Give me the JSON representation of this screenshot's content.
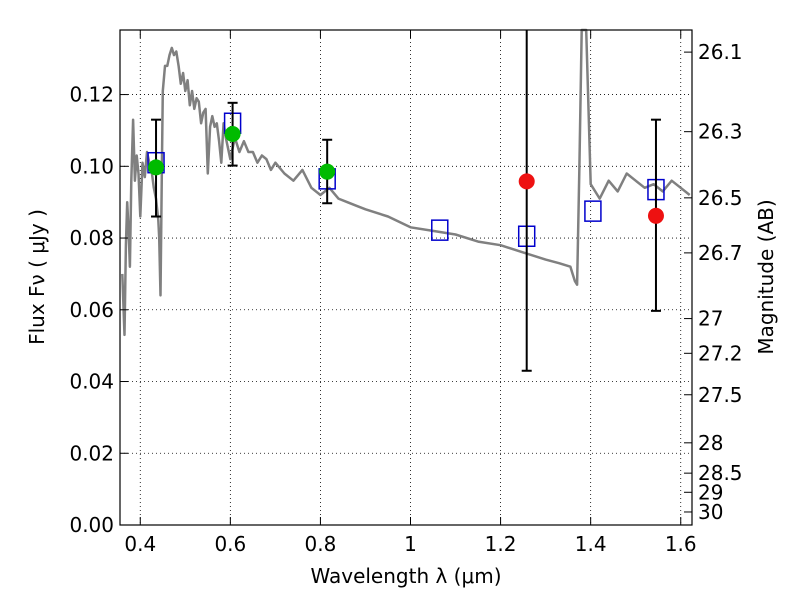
{
  "chart_data": {
    "type": "scatter",
    "xlabel": "Wavelength  λ (μm)",
    "ylabel": "Flux  Fν  ( μJy )",
    "ylabel_right": "Magnitude (AB)",
    "xlim": [
      0.355,
      1.625
    ],
    "ylim": [
      0.0,
      0.138
    ],
    "x_ticks": [
      0.4,
      0.6,
      0.8,
      1.0,
      1.2,
      1.4,
      1.6
    ],
    "x_tick_labels": [
      "0.4",
      "0.6",
      "0.8",
      "1",
      "1.2",
      "1.4",
      "1.6"
    ],
    "y_ticks": [
      0.0,
      0.02,
      0.04,
      0.06,
      0.08,
      0.1,
      0.12
    ],
    "y_tick_labels": [
      "0.00",
      "0.02",
      "0.04",
      "0.06",
      "0.08",
      "0.10",
      "0.12"
    ],
    "right_ticks": [
      26.1,
      26.3,
      26.5,
      26.7,
      27,
      27.2,
      27.5,
      28,
      28.5,
      29,
      30
    ],
    "right_tick_labels": [
      "26.1",
      "26.3",
      "26.5",
      "26.7",
      "27",
      "27.2",
      "27.5",
      "28",
      "28.5",
      "29",
      "30"
    ],
    "grid": true,
    "colors": {
      "model_line": "#808080",
      "detection": "#00bb00",
      "nondetection": "#ee1111",
      "model_box": "#0000cc",
      "errorbar": "#000000"
    },
    "model_spectrum": {
      "x": [
        0.36,
        0.365,
        0.368,
        0.371,
        0.374,
        0.377,
        0.38,
        0.384,
        0.388,
        0.392,
        0.396,
        0.4,
        0.405,
        0.41,
        0.415,
        0.42,
        0.425,
        0.43,
        0.435,
        0.44,
        0.442,
        0.445,
        0.448,
        0.45,
        0.455,
        0.46,
        0.465,
        0.47,
        0.475,
        0.48,
        0.485,
        0.49,
        0.495,
        0.5,
        0.505,
        0.51,
        0.515,
        0.52,
        0.525,
        0.53,
        0.535,
        0.54,
        0.545,
        0.55,
        0.555,
        0.56,
        0.565,
        0.57,
        0.575,
        0.58,
        0.585,
        0.59,
        0.6,
        0.61,
        0.62,
        0.63,
        0.64,
        0.65,
        0.66,
        0.67,
        0.68,
        0.69,
        0.7,
        0.72,
        0.74,
        0.76,
        0.78,
        0.8,
        0.82,
        0.84,
        0.86,
        0.88,
        0.9,
        0.95,
        1.0,
        1.05,
        1.1,
        1.15,
        1.2,
        1.25,
        1.3,
        1.33,
        1.355,
        1.36,
        1.365,
        1.37,
        1.375,
        1.38,
        1.39,
        1.4,
        1.42,
        1.44,
        1.46,
        1.48,
        1.5,
        1.52,
        1.54,
        1.56,
        1.58,
        1.6,
        1.62
      ],
      "y": [
        0.07,
        0.053,
        0.078,
        0.09,
        0.082,
        0.072,
        0.096,
        0.113,
        0.096,
        0.103,
        0.098,
        0.086,
        0.101,
        0.097,
        0.104,
        0.101,
        0.099,
        0.094,
        0.091,
        0.085,
        0.08,
        0.064,
        0.1,
        0.121,
        0.128,
        0.128,
        0.131,
        0.133,
        0.131,
        0.132,
        0.128,
        0.123,
        0.126,
        0.121,
        0.124,
        0.117,
        0.121,
        0.116,
        0.119,
        0.118,
        0.112,
        0.115,
        0.116,
        0.098,
        0.111,
        0.114,
        0.111,
        0.112,
        0.107,
        0.101,
        0.112,
        0.108,
        0.102,
        0.108,
        0.104,
        0.107,
        0.104,
        0.104,
        0.101,
        0.103,
        0.102,
        0.099,
        0.101,
        0.098,
        0.096,
        0.099,
        0.094,
        0.092,
        0.094,
        0.091,
        0.09,
        0.089,
        0.088,
        0.086,
        0.083,
        0.082,
        0.081,
        0.079,
        0.078,
        0.076,
        0.074,
        0.073,
        0.072,
        0.07,
        0.068,
        0.067,
        0.1,
        0.14,
        0.14,
        0.095,
        0.091,
        0.096,
        0.093,
        0.098,
        0.096,
        0.094,
        0.095,
        0.093,
        0.096,
        0.094,
        0.092
      ]
    },
    "series": [
      {
        "x": [
          0.435,
          0.605,
          0.815
        ],
        "y": [
          0.0997,
          0.109,
          0.0985
        ],
        "yerr_low": [
          0.0137,
          0.0088,
          0.0088
        ],
        "yerr_high": [
          0.0133,
          0.0087,
          0.0089
        ]
      },
      {
        "x": [
          1.258,
          1.545
        ],
        "y": [
          0.0958,
          0.0862
        ],
        "yerr_low": [
          0.0528,
          0.0265
        ],
        "yerr_high": [
          0.0422,
          0.0268
        ]
      },
      {
        "x": [
          0.435,
          0.605,
          0.815,
          1.065,
          1.258,
          1.405,
          1.545
        ],
        "y": [
          0.101,
          0.112,
          0.0965,
          0.0822,
          0.0805,
          0.0875,
          0.0935
        ]
      }
    ]
  }
}
